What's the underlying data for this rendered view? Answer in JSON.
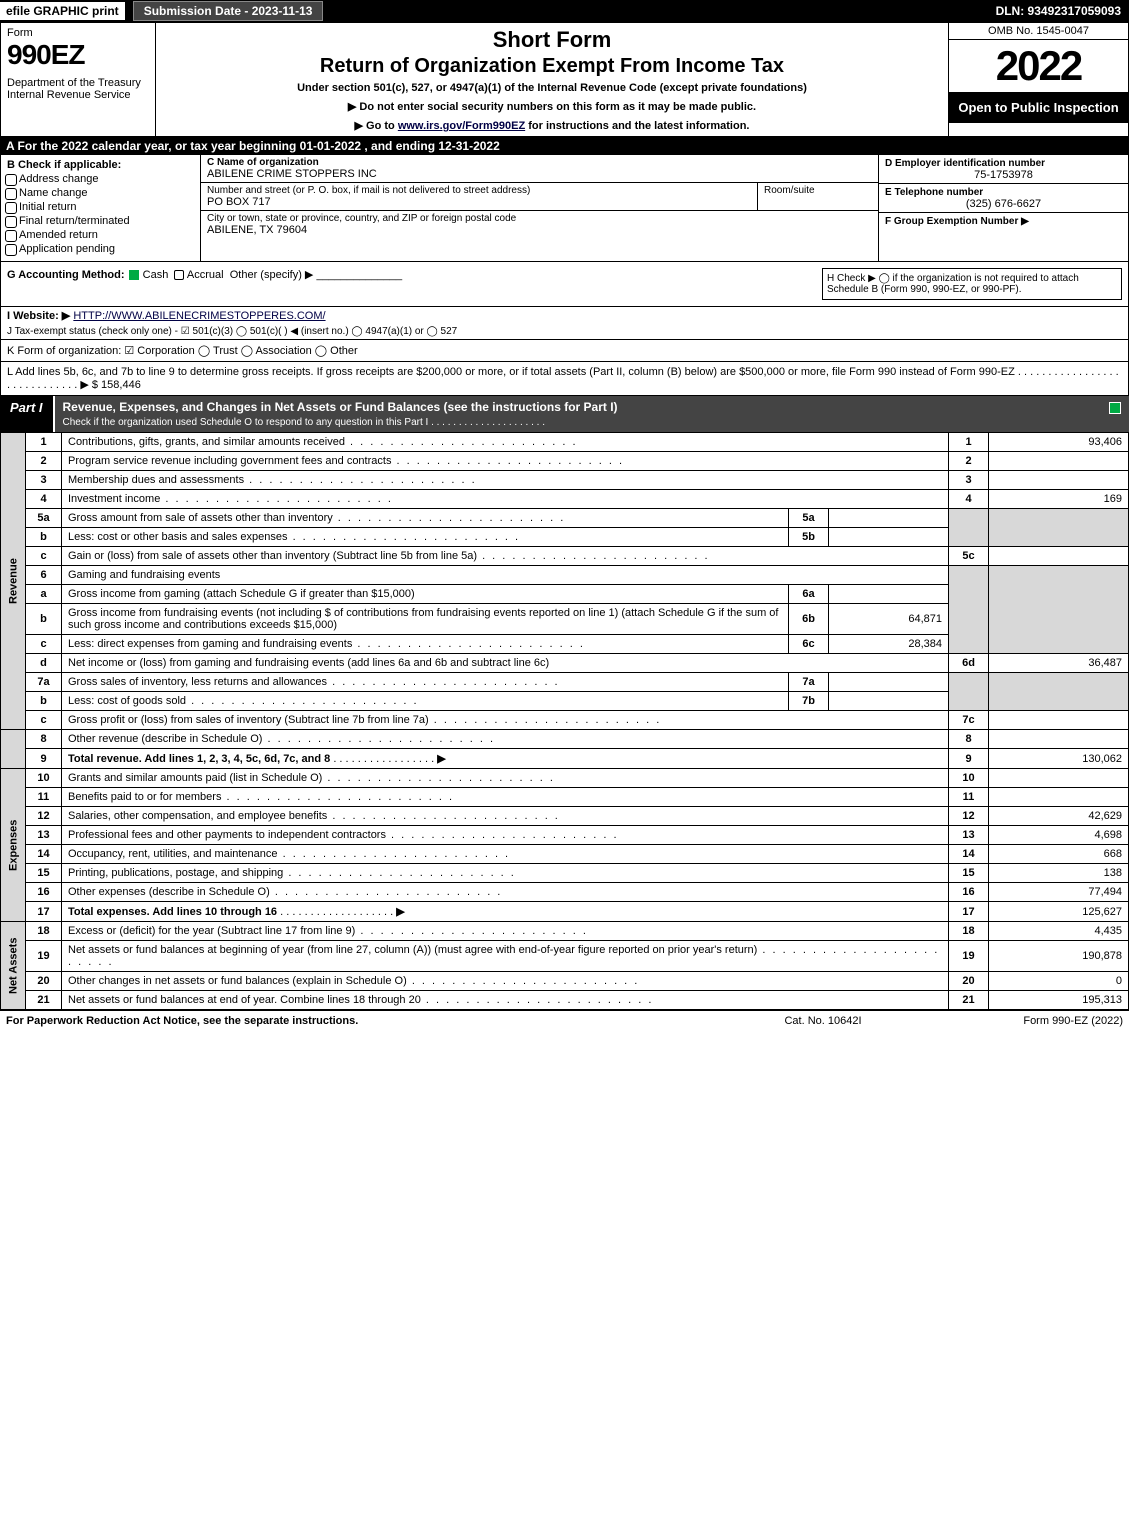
{
  "topbar": {
    "efile": "efile GRAPHIC print",
    "submit": "Submission Date - 2023-11-13",
    "dln": "DLN: 93492317059093"
  },
  "header": {
    "form_label": "Form",
    "form_num": "990EZ",
    "dept": "Department of the Treasury\nInternal Revenue Service",
    "title": "Short Form",
    "subtitle": "Return of Organization Exempt From Income Tax",
    "under": "Under section 501(c), 527, or 4947(a)(1) of the Internal Revenue Code (except private foundations)",
    "note1": "▶ Do not enter social security numbers on this form as it may be made public.",
    "note2_pre": "▶ Go to ",
    "note2_link": "www.irs.gov/Form990EZ",
    "note2_post": " for instructions and the latest information.",
    "omb": "OMB No. 1545-0047",
    "year": "2022",
    "inspect": "Open to Public Inspection"
  },
  "rowA": "A  For the 2022 calendar year, or tax year beginning 01-01-2022 , and ending 12-31-2022",
  "boxB": {
    "label": "B  Check if applicable:",
    "opts": [
      "Address change",
      "Name change",
      "Initial return",
      "Final return/terminated",
      "Amended return",
      "Application pending"
    ]
  },
  "boxC": {
    "c1_lbl": "C Name of organization",
    "c1_val": "ABILENE CRIME STOPPERS INC",
    "c2a_lbl": "Number and street (or P. O. box, if mail is not delivered to street address)",
    "c2a_val": "PO BOX 717",
    "c2b_lbl": "Room/suite",
    "c3_lbl": "City or town, state or province, country, and ZIP or foreign postal code",
    "c3_val": "ABILENE, TX  79604"
  },
  "boxD": {
    "d_lbl": "D Employer identification number",
    "d_val": "75-1753978",
    "e_lbl": "E Telephone number",
    "e_val": "(325) 676-6627",
    "f_lbl": "F Group Exemption Number  ▶"
  },
  "secG": {
    "g_lbl": "G Accounting Method:",
    "g_cash": "Cash",
    "g_accrual": "Accrual",
    "g_other": "Other (specify) ▶",
    "h_text": "H  Check ▶  ◯  if the organization is not required to attach Schedule B (Form 990, 990-EZ, or 990-PF)."
  },
  "lineI": {
    "lbl": "I Website: ▶",
    "url": "HTTP://WWW.ABILENECRIMESTOPPERES.COM/"
  },
  "lineJ": "J Tax-exempt status (check only one) -  ☑ 501(c)(3)  ◯ 501(c)(  ) ◀ (insert no.)  ◯ 4947(a)(1) or  ◯ 527",
  "lineK": "K Form of organization:   ☑ Corporation   ◯ Trust   ◯ Association   ◯ Other",
  "lineL": {
    "text": "L Add lines 5b, 6c, and 7b to line 9 to determine gross receipts. If gross receipts are $200,000 or more, or if total assets (Part II, column (B) below) are $500,000 or more, file Form 990 instead of Form 990-EZ . . . . . . . . . . . . . . . . . . . . . . . . . . . . . ▶ $",
    "val": "158,446"
  },
  "part1": {
    "title": "Part I",
    "desc": "Revenue, Expenses, and Changes in Net Assets or Fund Balances (see the instructions for Part I)",
    "sub": "Check if the organization used Schedule O to respond to any question in this Part I . . . . . . . . . . . . . . . . . . . . ."
  },
  "sidelabels": {
    "rev": "Revenue",
    "exp": "Expenses",
    "net": "Net Assets"
  },
  "lines": {
    "l1": {
      "n": "1",
      "d": "Contributions, gifts, grants, and similar amounts received",
      "l": "1",
      "v": "93,406"
    },
    "l2": {
      "n": "2",
      "d": "Program service revenue including government fees and contracts",
      "l": "2",
      "v": ""
    },
    "l3": {
      "n": "3",
      "d": "Membership dues and assessments",
      "l": "3",
      "v": ""
    },
    "l4": {
      "n": "4",
      "d": "Investment income",
      "l": "4",
      "v": "169"
    },
    "l5a": {
      "n": "5a",
      "d": "Gross amount from sale of assets other than inventory",
      "sl": "5a",
      "sv": ""
    },
    "l5b": {
      "n": "b",
      "d": "Less: cost or other basis and sales expenses",
      "sl": "5b",
      "sv": ""
    },
    "l5c": {
      "n": "c",
      "d": "Gain or (loss) from sale of assets other than inventory (Subtract line 5b from line 5a)",
      "l": "5c",
      "v": ""
    },
    "l6": {
      "n": "6",
      "d": "Gaming and fundraising events"
    },
    "l6a": {
      "n": "a",
      "d": "Gross income from gaming (attach Schedule G if greater than $15,000)",
      "sl": "6a",
      "sv": ""
    },
    "l6b": {
      "n": "b",
      "d": "Gross income from fundraising events (not including $                  of contributions from fundraising events reported on line 1) (attach Schedule G if the sum of such gross income and contributions exceeds $15,000)",
      "sl": "6b",
      "sv": "64,871"
    },
    "l6c": {
      "n": "c",
      "d": "Less: direct expenses from gaming and fundraising events",
      "sl": "6c",
      "sv": "28,384"
    },
    "l6d": {
      "n": "d",
      "d": "Net income or (loss) from gaming and fundraising events (add lines 6a and 6b and subtract line 6c)",
      "l": "6d",
      "v": "36,487"
    },
    "l7a": {
      "n": "7a",
      "d": "Gross sales of inventory, less returns and allowances",
      "sl": "7a",
      "sv": ""
    },
    "l7b": {
      "n": "b",
      "d": "Less: cost of goods sold",
      "sl": "7b",
      "sv": ""
    },
    "l7c": {
      "n": "c",
      "d": "Gross profit or (loss) from sales of inventory (Subtract line 7b from line 7a)",
      "l": "7c",
      "v": ""
    },
    "l8": {
      "n": "8",
      "d": "Other revenue (describe in Schedule O)",
      "l": "8",
      "v": ""
    },
    "l9": {
      "n": "9",
      "d": "Total revenue. Add lines 1, 2, 3, 4, 5c, 6d, 7c, and 8",
      "l": "9",
      "v": "130,062"
    },
    "l10": {
      "n": "10",
      "d": "Grants and similar amounts paid (list in Schedule O)",
      "l": "10",
      "v": ""
    },
    "l11": {
      "n": "11",
      "d": "Benefits paid to or for members",
      "l": "11",
      "v": ""
    },
    "l12": {
      "n": "12",
      "d": "Salaries, other compensation, and employee benefits",
      "l": "12",
      "v": "42,629"
    },
    "l13": {
      "n": "13",
      "d": "Professional fees and other payments to independent contractors",
      "l": "13",
      "v": "4,698"
    },
    "l14": {
      "n": "14",
      "d": "Occupancy, rent, utilities, and maintenance",
      "l": "14",
      "v": "668"
    },
    "l15": {
      "n": "15",
      "d": "Printing, publications, postage, and shipping",
      "l": "15",
      "v": "138"
    },
    "l16": {
      "n": "16",
      "d": "Other expenses (describe in Schedule O)",
      "l": "16",
      "v": "77,494"
    },
    "l17": {
      "n": "17",
      "d": "Total expenses. Add lines 10 through 16",
      "l": "17",
      "v": "125,627"
    },
    "l18": {
      "n": "18",
      "d": "Excess or (deficit) for the year (Subtract line 17 from line 9)",
      "l": "18",
      "v": "4,435"
    },
    "l19": {
      "n": "19",
      "d": "Net assets or fund balances at beginning of year (from line 27, column (A)) (must agree with end-of-year figure reported on prior year's return)",
      "l": "19",
      "v": "190,878"
    },
    "l20": {
      "n": "20",
      "d": "Other changes in net assets or fund balances (explain in Schedule O)",
      "l": "20",
      "v": "0"
    },
    "l21": {
      "n": "21",
      "d": "Net assets or fund balances at end of year. Combine lines 18 through 20",
      "l": "21",
      "v": "195,313"
    }
  },
  "footer": {
    "f1": "For Paperwork Reduction Act Notice, see the separate instructions.",
    "f2": "Cat. No. 10642I",
    "f3": "Form 990-EZ (2022)"
  }
}
